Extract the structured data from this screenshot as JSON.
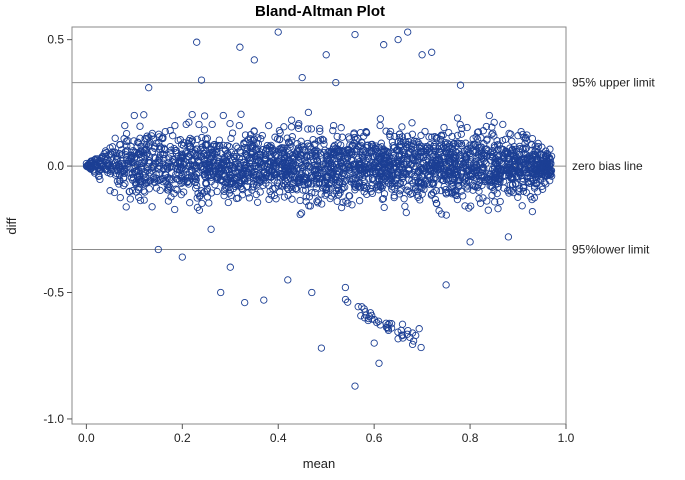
{
  "chart_data": {
    "type": "scatter",
    "title": "Bland-Altman Plot",
    "xlabel": "mean",
    "ylabel": "diff",
    "xlim": [
      -0.03,
      1.0
    ],
    "ylim": [
      -1.02,
      0.55
    ],
    "x_ticks": [
      "0.0",
      "0.2",
      "0.4",
      "0.6",
      "0.8",
      "1.0"
    ],
    "x_tick_values": [
      0.0,
      0.2,
      0.4,
      0.6,
      0.8,
      1.0
    ],
    "y_ticks": [
      "0.5",
      "0.0",
      "-0.5",
      "-1.0"
    ],
    "y_tick_values": [
      0.5,
      0.0,
      -0.5,
      -1.0
    ],
    "grid": false,
    "legend": "none",
    "marker": "open-circle",
    "marker_color": "#1c3f94",
    "reference_lines": [
      {
        "label": "95% upper limit",
        "y": 0.33
      },
      {
        "label": "zero bias line",
        "y": 0.0
      },
      {
        "label": "95%lower limit",
        "y": -0.33
      }
    ],
    "points": [
      [
        0.0,
        0.01
      ],
      [
        0.02,
        0.02
      ],
      [
        0.04,
        0.06
      ],
      [
        0.06,
        0.11
      ],
      [
        0.08,
        0.16
      ],
      [
        0.1,
        0.2
      ],
      [
        0.01,
        -0.01
      ],
      [
        0.03,
        0.0
      ],
      [
        0.05,
        -0.03
      ],
      [
        0.07,
        -0.06
      ],
      [
        0.09,
        -0.1
      ],
      [
        0.11,
        0.05
      ],
      [
        0.13,
        0.31
      ],
      [
        0.15,
        -0.33
      ],
      [
        0.18,
        0.12
      ],
      [
        0.2,
        -0.36
      ],
      [
        0.23,
        0.49
      ],
      [
        0.24,
        0.34
      ],
      [
        0.26,
        -0.25
      ],
      [
        0.28,
        -0.5
      ],
      [
        0.3,
        -0.4
      ],
      [
        0.32,
        0.47
      ],
      [
        0.33,
        -0.54
      ],
      [
        0.35,
        0.42
      ],
      [
        0.37,
        -0.53
      ],
      [
        0.4,
        0.53
      ],
      [
        0.42,
        -0.45
      ],
      [
        0.45,
        0.35
      ],
      [
        0.47,
        -0.5
      ],
      [
        0.49,
        -0.72
      ],
      [
        0.5,
        0.44
      ],
      [
        0.52,
        0.33
      ],
      [
        0.54,
        -0.48
      ],
      [
        0.56,
        0.52
      ],
      [
        0.56,
        -0.87
      ],
      [
        0.58,
        -0.6
      ],
      [
        0.6,
        -0.7
      ],
      [
        0.61,
        -0.78
      ],
      [
        0.62,
        0.48
      ],
      [
        0.63,
        -0.65
      ],
      [
        0.65,
        0.5
      ],
      [
        0.66,
        -0.68
      ],
      [
        0.67,
        0.53
      ],
      [
        0.68,
        -0.66
      ],
      [
        0.7,
        0.44
      ],
      [
        0.72,
        0.45
      ],
      [
        0.75,
        -0.47
      ],
      [
        0.78,
        0.32
      ],
      [
        0.8,
        -0.3
      ],
      [
        0.84,
        0.2
      ],
      [
        0.88,
        -0.28
      ],
      [
        0.9,
        0.12
      ],
      [
        0.93,
        -0.18
      ],
      [
        0.95,
        -0.08
      ],
      [
        0.97,
        -0.04
      ]
    ]
  }
}
